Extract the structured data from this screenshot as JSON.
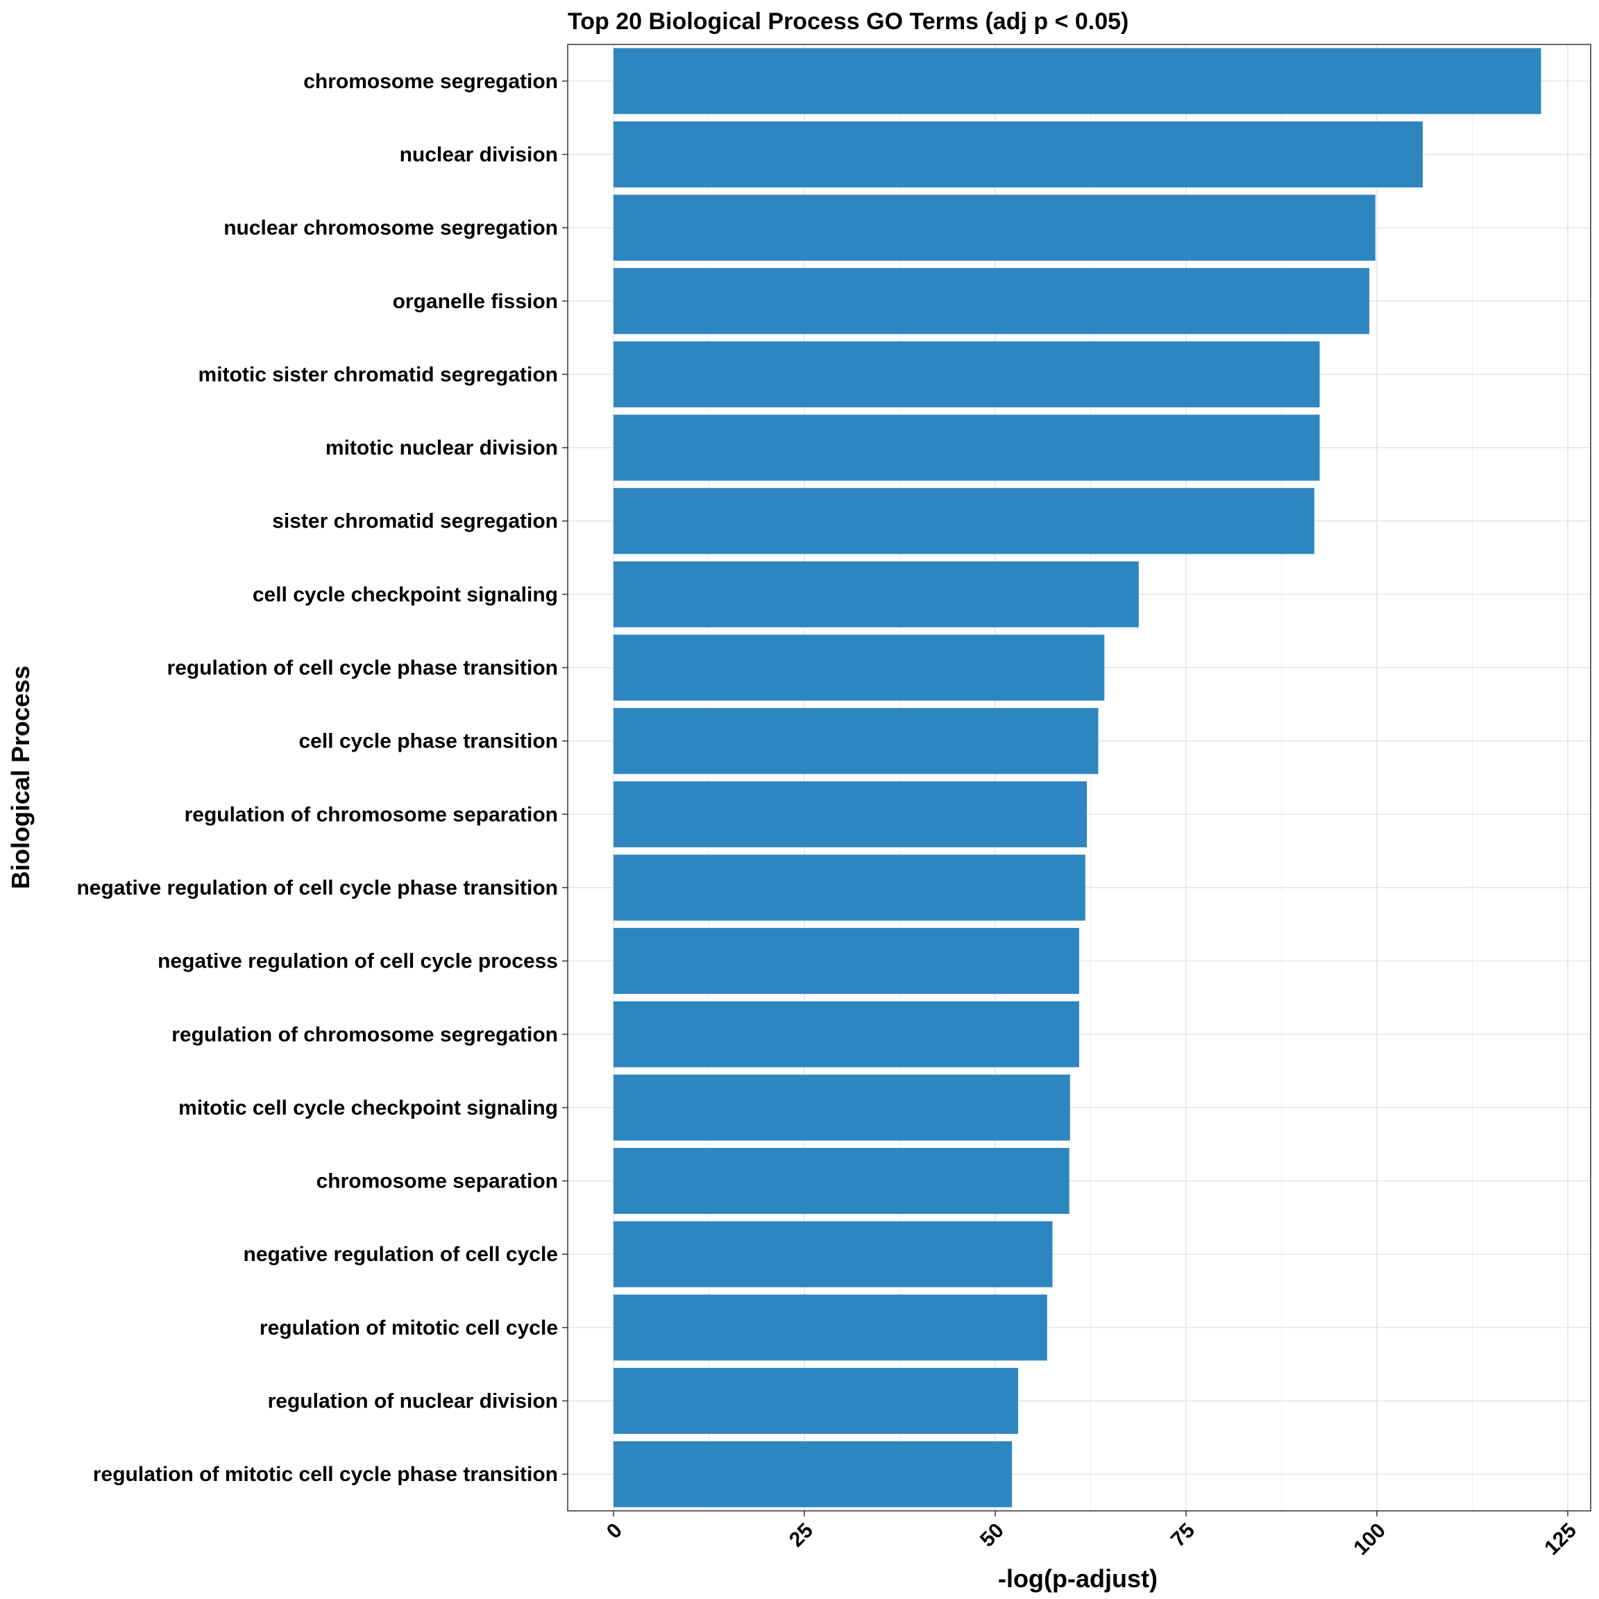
{
  "chart_data": {
    "type": "bar",
    "orientation": "horizontal",
    "title": "Top 20 Biological Process GO Terms (adj p < 0.05)",
    "xlabel": "-log(p-adjust)",
    "ylabel": "Biological Process",
    "xlim": [
      -6,
      128
    ],
    "xticks": [
      0,
      25,
      50,
      75,
      100,
      125
    ],
    "grid": true,
    "bar_color": "#2E86C1",
    "categories": [
      "chromosome segregation",
      "nuclear division",
      "nuclear chromosome segregation",
      "organelle fission",
      "mitotic sister chromatid segregation",
      "mitotic nuclear division",
      "sister chromatid segregation",
      "cell cycle checkpoint signaling",
      "regulation of cell cycle phase transition",
      "cell cycle phase transition",
      "regulation of chromosome separation",
      "negative regulation of cell cycle phase transition",
      "negative regulation of cell cycle process",
      "regulation of chromosome segregation",
      "mitotic cell cycle checkpoint signaling",
      "chromosome separation",
      "negative regulation of cell cycle",
      "regulation of mitotic cell cycle",
      "regulation of nuclear division",
      "regulation of mitotic cell cycle phase transition"
    ],
    "values": [
      121.5,
      106.0,
      99.8,
      99.0,
      92.5,
      92.5,
      91.8,
      68.8,
      64.3,
      63.5,
      62.0,
      61.8,
      61.0,
      61.0,
      59.8,
      59.7,
      57.5,
      56.8,
      53.0,
      52.2
    ]
  }
}
